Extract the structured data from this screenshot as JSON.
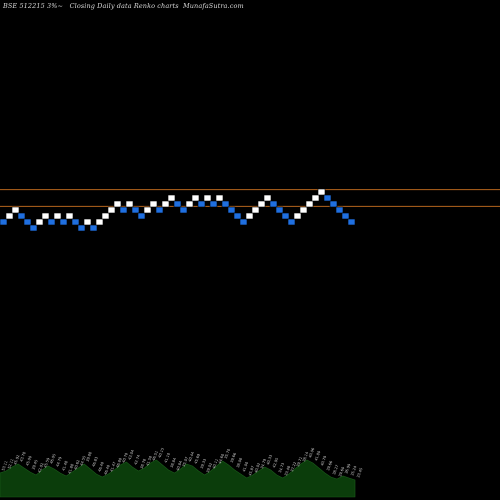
{
  "header": {
    "ticker": "BSE 512215 3%",
    "chart_type": "Closing Daily data Renko charts",
    "source": "MunafaSutra.com"
  },
  "chart_data": {
    "type": "renko",
    "box_size_label": "3%",
    "up_color": "#ffffff",
    "down_color": "#1f6fe0",
    "line_color": "#b5651d",
    "volume_area_color": "#0b3d0b",
    "background": "#000000",
    "bricks": [
      {
        "level": 0,
        "dir": "down"
      },
      {
        "level": 1,
        "dir": "up"
      },
      {
        "level": 2,
        "dir": "up"
      },
      {
        "level": 1,
        "dir": "down"
      },
      {
        "level": 0,
        "dir": "down"
      },
      {
        "level": -1,
        "dir": "down"
      },
      {
        "level": 0,
        "dir": "up"
      },
      {
        "level": 1,
        "dir": "up"
      },
      {
        "level": 0,
        "dir": "down"
      },
      {
        "level": 1,
        "dir": "up"
      },
      {
        "level": 0,
        "dir": "down"
      },
      {
        "level": 1,
        "dir": "up"
      },
      {
        "level": 0,
        "dir": "down"
      },
      {
        "level": -1,
        "dir": "down"
      },
      {
        "level": 0,
        "dir": "up"
      },
      {
        "level": -1,
        "dir": "down"
      },
      {
        "level": 0,
        "dir": "up"
      },
      {
        "level": 1,
        "dir": "up"
      },
      {
        "level": 2,
        "dir": "up"
      },
      {
        "level": 3,
        "dir": "up"
      },
      {
        "level": 2,
        "dir": "down"
      },
      {
        "level": 3,
        "dir": "up"
      },
      {
        "level": 2,
        "dir": "down"
      },
      {
        "level": 1,
        "dir": "down"
      },
      {
        "level": 2,
        "dir": "up"
      },
      {
        "level": 3,
        "dir": "up"
      },
      {
        "level": 2,
        "dir": "down"
      },
      {
        "level": 3,
        "dir": "up"
      },
      {
        "level": 4,
        "dir": "up"
      },
      {
        "level": 3,
        "dir": "down"
      },
      {
        "level": 2,
        "dir": "down"
      },
      {
        "level": 3,
        "dir": "up"
      },
      {
        "level": 4,
        "dir": "up"
      },
      {
        "level": 3,
        "dir": "down"
      },
      {
        "level": 4,
        "dir": "up"
      },
      {
        "level": 3,
        "dir": "down"
      },
      {
        "level": 4,
        "dir": "up"
      },
      {
        "level": 3,
        "dir": "down"
      },
      {
        "level": 2,
        "dir": "down"
      },
      {
        "level": 1,
        "dir": "down"
      },
      {
        "level": 0,
        "dir": "down"
      },
      {
        "level": 1,
        "dir": "up"
      },
      {
        "level": 2,
        "dir": "up"
      },
      {
        "level": 3,
        "dir": "up"
      },
      {
        "level": 4,
        "dir": "up"
      },
      {
        "level": 3,
        "dir": "down"
      },
      {
        "level": 2,
        "dir": "down"
      },
      {
        "level": 1,
        "dir": "down"
      },
      {
        "level": 0,
        "dir": "down"
      },
      {
        "level": 1,
        "dir": "up"
      },
      {
        "level": 2,
        "dir": "up"
      },
      {
        "level": 3,
        "dir": "up"
      },
      {
        "level": 4,
        "dir": "up"
      },
      {
        "level": 5,
        "dir": "up"
      },
      {
        "level": 4,
        "dir": "down"
      },
      {
        "level": 3,
        "dir": "down"
      },
      {
        "level": 2,
        "dir": "down"
      },
      {
        "level": 1,
        "dir": "down"
      },
      {
        "level": 0,
        "dir": "down"
      }
    ],
    "reference_lines": [
      {
        "level": 5.4
      },
      {
        "level": 2.6
      }
    ],
    "volume_profile": [
      14,
      16,
      20,
      23,
      19,
      15,
      12,
      17,
      21,
      18,
      14,
      11,
      15,
      19,
      23,
      18,
      13,
      10,
      13,
      17,
      22,
      25,
      20,
      16,
      19,
      24,
      27,
      22,
      17,
      14,
      18,
      23,
      21,
      16,
      12,
      16,
      21,
      26,
      22,
      17,
      13,
      9,
      12,
      16,
      20,
      17,
      12,
      9,
      13,
      18,
      23,
      27,
      24,
      19,
      14,
      10,
      8,
      11,
      9,
      7
    ],
    "volume_labels": [
      "53.11",
      "52.11",
      "45.92",
      "43.78",
      "45.00",
      "39.45",
      "42.02",
      "45.59",
      "46.05",
      "44.79",
      "41.48",
      "41.88",
      "40.62",
      "44.55",
      "39.88",
      "46.83",
      "46.40",
      "46.40",
      "41.47",
      "46.80",
      "40.70",
      "43.04",
      "42.74",
      "38.78",
      "41.50",
      "46.51",
      "40.15",
      "41.10",
      "38.84",
      "40.84",
      "35.07",
      "40.44",
      "45.69",
      "39.33",
      "39.02",
      "40.11",
      "44.60",
      "35.70",
      "39.66",
      "38.08",
      "41.00",
      "45.87",
      "40.02",
      "34.79",
      "40.33",
      "42.95",
      "34.73",
      "33.48",
      "37.22",
      "39.71",
      "38.14",
      "40.06",
      "41.80",
      "40.79",
      "39.66",
      "38.27",
      "39.60",
      "36.99",
      "35.24",
      "33.45"
    ]
  }
}
